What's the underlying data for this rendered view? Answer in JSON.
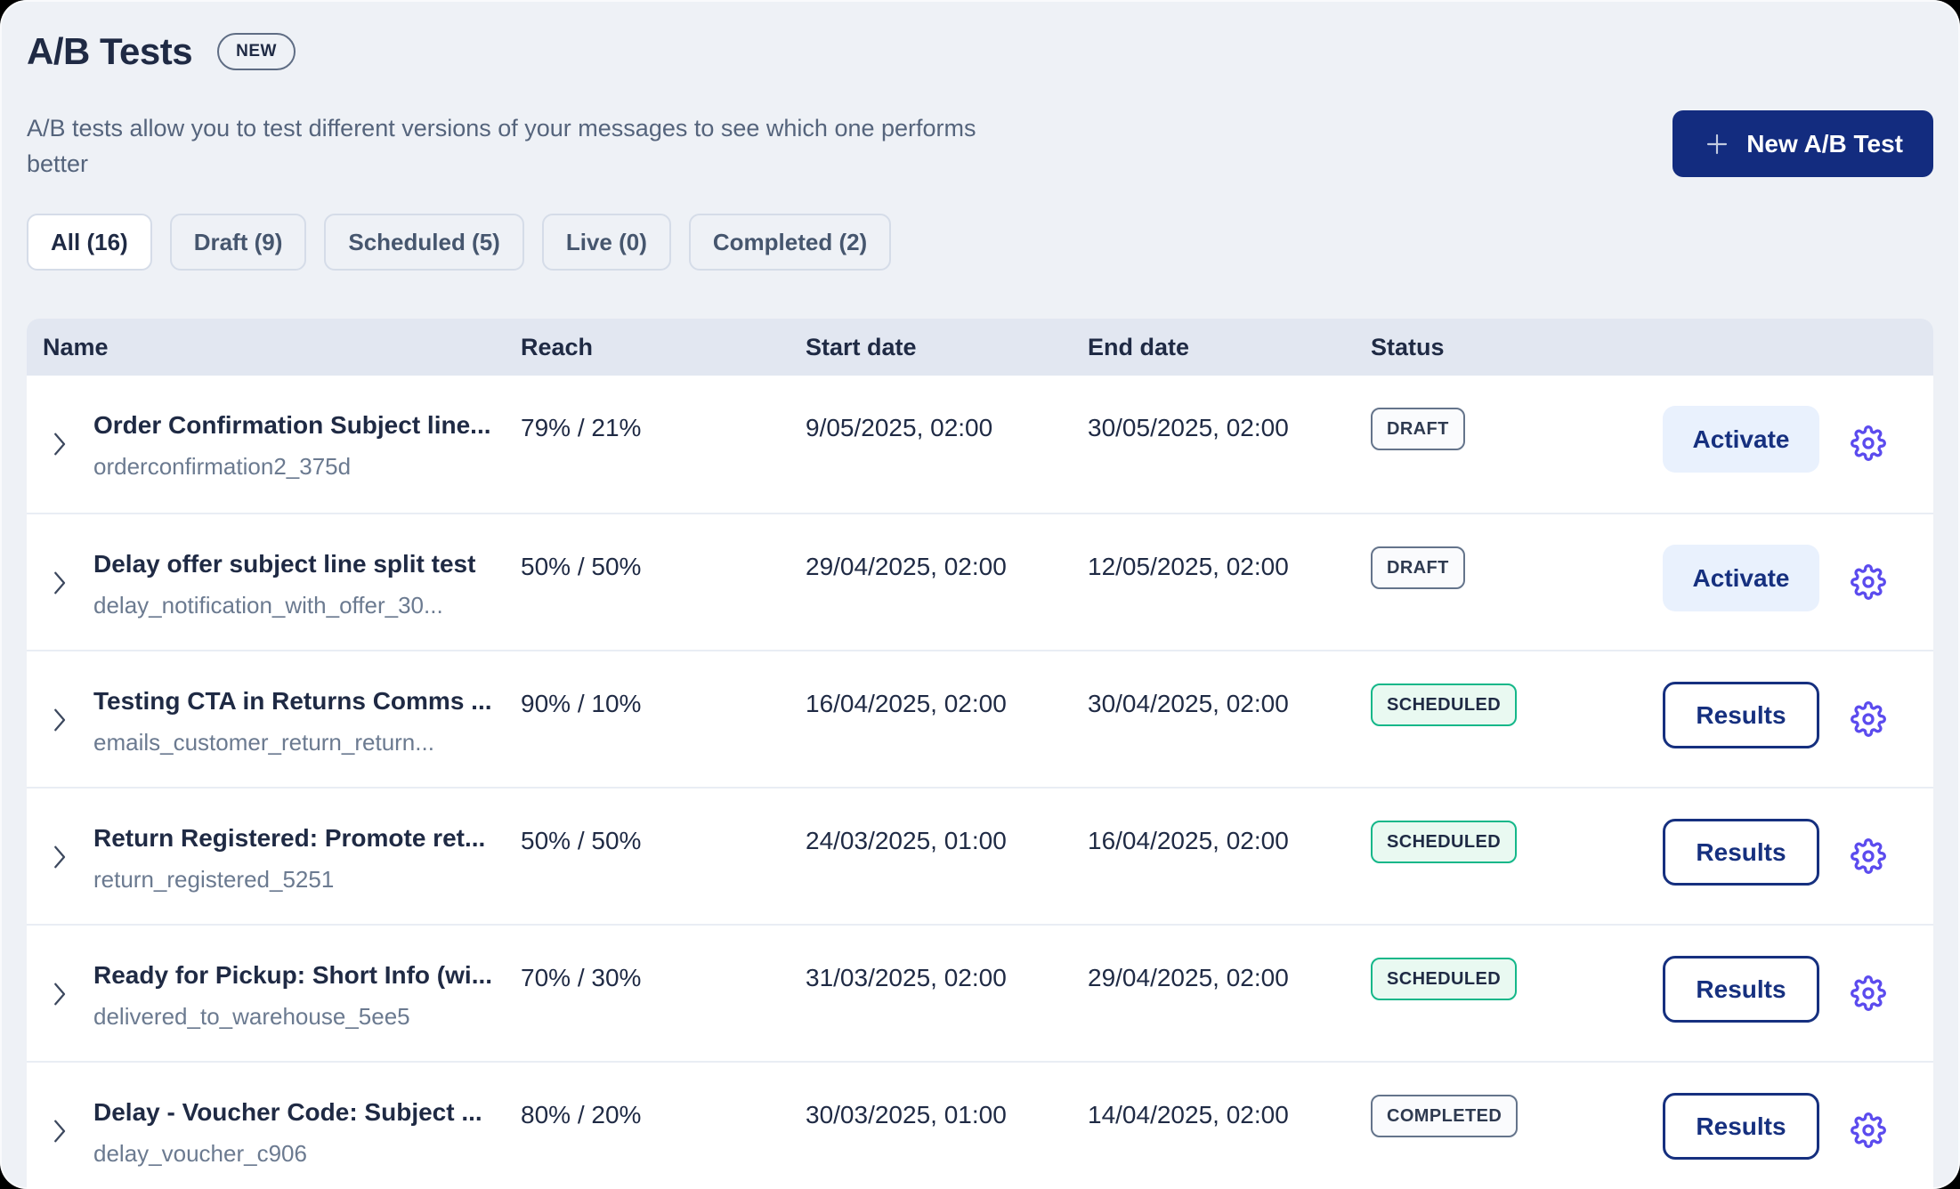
{
  "header": {
    "title": "A/B Tests",
    "badge": "NEW",
    "description": "A/B tests allow you to test different versions of your messages to see which one performs better",
    "new_test_button": "New A/B Test",
    "plus_icon": "plus"
  },
  "filters": [
    {
      "label": "All (16)",
      "active": true
    },
    {
      "label": "Draft (9)",
      "active": false
    },
    {
      "label": "Scheduled (5)",
      "active": false
    },
    {
      "label": "Live (0)",
      "active": false
    },
    {
      "label": "Completed (2)",
      "active": false
    }
  ],
  "table": {
    "columns": [
      "Name",
      "Reach",
      "Start date",
      "End date",
      "Status"
    ],
    "rows": [
      {
        "name": "Order Confirmation Subject line...",
        "id": "orderconfirmation2_375d",
        "reach": "79% / 21%",
        "start": "9/05/2025, 02:00",
        "end": "30/05/2025, 02:00",
        "status": "DRAFT",
        "action": "Activate"
      },
      {
        "name": "Delay offer subject line split test",
        "id": "delay_notification_with_offer_30...",
        "reach": "50% / 50%",
        "start": "29/04/2025, 02:00",
        "end": "12/05/2025, 02:00",
        "status": "DRAFT",
        "action": "Activate"
      },
      {
        "name": "Testing CTA in Returns Comms ...",
        "id": "emails_customer_return_return...",
        "reach": "90% / 10%",
        "start": "16/04/2025, 02:00",
        "end": "30/04/2025, 02:00",
        "status": "SCHEDULED",
        "action": "Results"
      },
      {
        "name": "Return Registered: Promote ret...",
        "id": "return_registered_5251",
        "reach": "50% / 50%",
        "start": "24/03/2025, 01:00",
        "end": "16/04/2025, 02:00",
        "status": "SCHEDULED",
        "action": "Results"
      },
      {
        "name": "Ready for Pickup: Short Info (wi...",
        "id": "delivered_to_warehouse_5ee5",
        "reach": "70% / 30%",
        "start": "31/03/2025, 02:00",
        "end": "29/04/2025, 02:00",
        "status": "SCHEDULED",
        "action": "Results"
      },
      {
        "name": "Delay - Voucher Code: Subject ...",
        "id": "delay_voucher_c906",
        "reach": "80% / 20%",
        "start": "30/03/2025, 01:00",
        "end": "14/04/2025, 02:00",
        "status": "COMPLETED",
        "action": "Results"
      }
    ]
  },
  "icons": {
    "row_expand": "chevron-right-icon",
    "row_settings": "gear-icon",
    "new_test": "plus-icon"
  },
  "colors": {
    "page_bg": "#eef1f6",
    "primary_navy": "#132c7f",
    "action_navy": "#16307f",
    "activate_bg": "#e9f1fd",
    "accent_indigo": "#5b4bee",
    "table_header_bg": "#e2e7f1",
    "text_dark": "#1f2a44",
    "text_slate": "#55647c",
    "scheduled_green": "#14b789",
    "badge_slate_border": "#64748b"
  }
}
